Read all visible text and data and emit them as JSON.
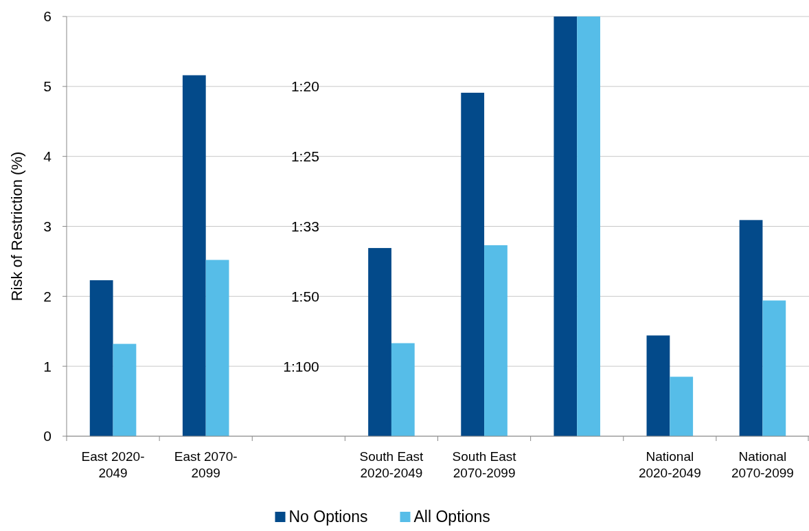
{
  "chart_data": {
    "type": "bar",
    "ylabel": "Risk of Restriction (%)",
    "categories": [
      "East 2020-2049",
      "East 2070-2099",
      null,
      "South East 2020-2049",
      "South East 2070-2099",
      null,
      "National 2020-2049",
      "National 2070-2099"
    ],
    "series": [
      {
        "name": "No Options",
        "color": "#034a8a",
        "values": [
          2.23,
          5.16,
          null,
          2.69,
          4.91,
          6,
          1.44,
          3.09
        ]
      },
      {
        "name": "All Options",
        "color": "#56bde8",
        "values": [
          1.32,
          2.52,
          null,
          1.33,
          2.73,
          6,
          0.85,
          1.94
        ]
      }
    ],
    "ylim": [
      0,
      6
    ],
    "yticks": [
      0,
      1,
      2,
      3,
      4,
      5,
      6
    ],
    "grid": "y",
    "legend": "bottom",
    "annotations": [
      "1:20",
      "1:25",
      "1:33",
      "1:50",
      "1:100"
    ]
  }
}
